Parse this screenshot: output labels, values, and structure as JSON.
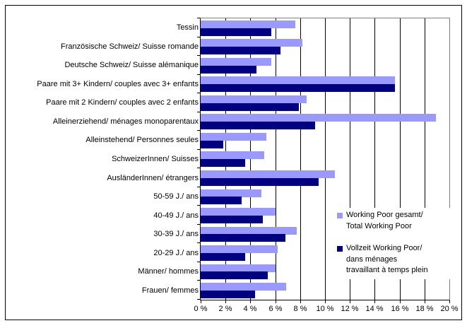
{
  "chart_data": {
    "type": "bar",
    "orientation": "horizontal",
    "title": "",
    "categories": [
      "Tessin",
      "Französische Schweiz/ Suisse romande",
      "Deutsche Schweiz/ Suisse alémanique",
      "Paare mit 3+ Kindern/ couples avec 3+ enfants",
      "Paare mit 2 Kindern/ couples avec 2 enfants",
      "Alleinerziehend/ ménages monoparentaux",
      "Alleinstehend/ Personnes seules",
      "SchweizerInnen/ Suisses",
      "AusländerInnen/ étrangers",
      "50-59 J./ ans",
      "40-49 J./ ans",
      "30-39 J./ ans",
      "20-29 J./ ans",
      "Männer/ hommes",
      "Frauen/ femmes"
    ],
    "series": [
      {
        "name": "Working Poor gesamt/ Total Working Poor",
        "color": "#9999FF",
        "values": [
          7.6,
          8.2,
          5.7,
          15.6,
          8.5,
          18.9,
          5.3,
          5.1,
          10.8,
          4.9,
          6.0,
          7.7,
          6.2,
          6.0,
          6.9
        ]
      },
      {
        "name": "Vollzeit Working Poor/ dans ménages travaillant à temps plein",
        "color": "#000080",
        "values": [
          5.7,
          6.4,
          4.5,
          15.6,
          7.9,
          9.2,
          1.8,
          3.6,
          9.5,
          3.3,
          5.0,
          6.8,
          3.6,
          5.4,
          4.4
        ]
      }
    ],
    "x_axis": {
      "min": 0,
      "max": 20,
      "step": 2,
      "unit": "%",
      "tick_labels": [
        "0 %",
        "2 %",
        "4 %",
        "6 %",
        "8 %",
        "10 %",
        "12 %",
        "14 %",
        "16 %",
        "18 %",
        "20 %"
      ]
    },
    "grid": true,
    "legend_position": "inside-right"
  },
  "legend": {
    "items": [
      {
        "color": "#9999FF",
        "label_lines": [
          "Working Poor gesamt/",
          "Total Working Poor"
        ]
      },
      {
        "color": "#000080",
        "label_lines": [
          "Vollzeit Working Poor/",
          "dans ménages",
          "travaillant à temps plein"
        ]
      }
    ]
  },
  "colors": {
    "series_light": "#9999FF",
    "series_dark": "#000080",
    "gridline": "#000000",
    "plot_border_gray": "#808080",
    "axis": "#000000",
    "background": "#ffffff",
    "outer_border": "#000000"
  }
}
